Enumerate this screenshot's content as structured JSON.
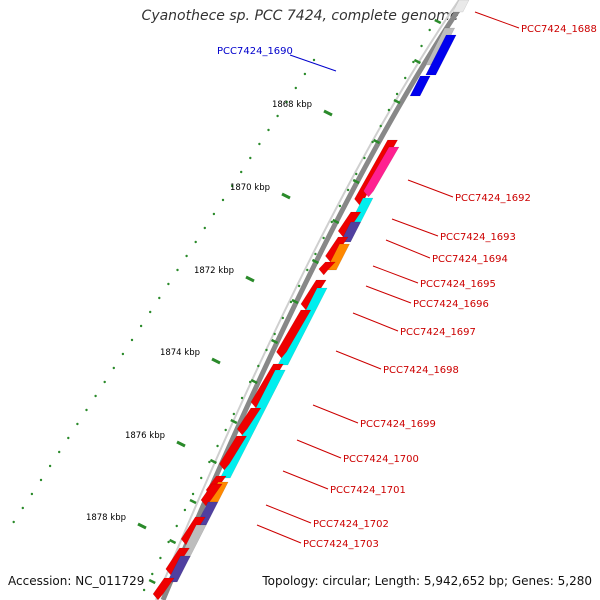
{
  "title": "Cyanothece sp. PCC 7424, complete genome",
  "footer": {
    "accession": "Accession: NC_011729",
    "summary": "Topology: circular; Length: 5,942,652 bp; Genes: 5,280"
  },
  "colors": {
    "backbone": "#808080",
    "tick": "#2a8a2a",
    "gene_label": "#cc0000",
    "highlight_label": "#0000cc"
  },
  "kbp_labels": [
    "1868 kbp",
    "1870 kbp",
    "1872 kbp",
    "1874 kbp",
    "1876 kbp",
    "1878 kbp"
  ],
  "gene_labels": [
    {
      "text": "PCC7424_1688",
      "color": "red"
    },
    {
      "text": "PCC7424_1690",
      "color": "blue"
    },
    {
      "text": "PCC7424_1692",
      "color": "red"
    },
    {
      "text": "PCC7424_1693",
      "color": "red"
    },
    {
      "text": "PCC7424_1694",
      "color": "red"
    },
    {
      "text": "PCC7424_1695",
      "color": "red"
    },
    {
      "text": "PCC7424_1696",
      "color": "red"
    },
    {
      "text": "PCC7424_1697",
      "color": "red"
    },
    {
      "text": "PCC7424_1698",
      "color": "red"
    },
    {
      "text": "PCC7424_1699",
      "color": "red"
    },
    {
      "text": "PCC7424_1700",
      "color": "red"
    },
    {
      "text": "PCC7424_1701",
      "color": "red"
    },
    {
      "text": "PCC7424_1702",
      "color": "red"
    },
    {
      "text": "PCC7424_1703",
      "color": "red"
    }
  ]
}
